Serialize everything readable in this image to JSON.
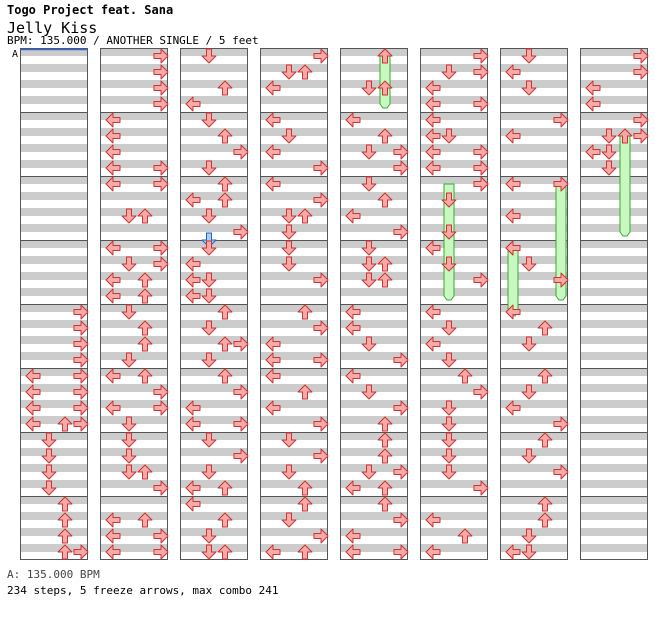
{
  "header": {
    "artist": "Togo Project feat. Sana",
    "title": "Jelly Kiss",
    "info": "BPM: 135.000 / ANOTHER SINGLE / 5 feet"
  },
  "bpm_marker": {
    "label": "A"
  },
  "footer": {
    "bpm_line": "A: 135.000 BPM",
    "stats_line": "234 steps, 5 freeze arrows, max combo 241"
  },
  "chart": {
    "columns": 8,
    "measures_per_column": 8,
    "rows_per_measure": 8,
    "lanes": [
      "left",
      "down",
      "up",
      "right"
    ],
    "colors": {
      "quarter_fill": "#f7a8a8",
      "quarter_stroke": "#cc3333",
      "eighth_fill": "#a8cff7",
      "eighth_stroke": "#2266bb",
      "freeze_fill": "#c8f7c0",
      "freeze_stroke": "#33aa33",
      "stripe": "#cccccc",
      "measure_line": "#555555",
      "bpm_line": "#3366cc"
    },
    "notes": [
      [
        0,
        4,
        0,
        3
      ],
      [
        0,
        4,
        2,
        3
      ],
      [
        0,
        4,
        4,
        3
      ],
      [
        0,
        4,
        6,
        3
      ],
      [
        0,
        5,
        0,
        3
      ],
      [
        0,
        5,
        2,
        3
      ],
      [
        0,
        5,
        4,
        3
      ],
      [
        0,
        5,
        6,
        3
      ],
      [
        0,
        5,
        0,
        0
      ],
      [
        0,
        5,
        2,
        0
      ],
      [
        0,
        5,
        4,
        0
      ],
      [
        0,
        5,
        6,
        0
      ],
      [
        0,
        5,
        6,
        2
      ],
      [
        0,
        6,
        0,
        1
      ],
      [
        0,
        6,
        2,
        1
      ],
      [
        0,
        6,
        4,
        1
      ],
      [
        0,
        6,
        6,
        1
      ],
      [
        0,
        7,
        0,
        2
      ],
      [
        0,
        7,
        2,
        2
      ],
      [
        0,
        7,
        4,
        2
      ],
      [
        0,
        7,
        6,
        2
      ],
      [
        0,
        7,
        6,
        3
      ],
      [
        1,
        0,
        0,
        3
      ],
      [
        1,
        0,
        2,
        3
      ],
      [
        1,
        0,
        4,
        3
      ],
      [
        1,
        0,
        6,
        3
      ],
      [
        1,
        1,
        0,
        0
      ],
      [
        1,
        1,
        2,
        0
      ],
      [
        1,
        1,
        4,
        0
      ],
      [
        1,
        1,
        6,
        0
      ],
      [
        1,
        1,
        6,
        3
      ],
      [
        1,
        1,
        8,
        0
      ],
      [
        1,
        1,
        8,
        3
      ],
      [
        1,
        2,
        4,
        1
      ],
      [
        1,
        2,
        4,
        2
      ],
      [
        1,
        3,
        0,
        0
      ],
      [
        1,
        3,
        0,
        3
      ],
      [
        1,
        3,
        2,
        1
      ],
      [
        1,
        3,
        2,
        3
      ],
      [
        1,
        3,
        4,
        0
      ],
      [
        1,
        3,
        4,
        2
      ],
      [
        1,
        3,
        6,
        0
      ],
      [
        1,
        3,
        6,
        2
      ],
      [
        1,
        4,
        0,
        1
      ],
      [
        1,
        4,
        2,
        2
      ],
      [
        1,
        4,
        4,
        2
      ],
      [
        1,
        4,
        6,
        1
      ],
      [
        1,
        5,
        0,
        0
      ],
      [
        1,
        5,
        0,
        2
      ],
      [
        1,
        5,
        2,
        3
      ],
      [
        1,
        5,
        4,
        0
      ],
      [
        1,
        5,
        4,
        3
      ],
      [
        1,
        5,
        6,
        1
      ],
      [
        1,
        6,
        0,
        1
      ],
      [
        1,
        6,
        2,
        1
      ],
      [
        1,
        6,
        4,
        1
      ],
      [
        1,
        6,
        4,
        2
      ],
      [
        1,
        6,
        6,
        3
      ],
      [
        1,
        7,
        2,
        0
      ],
      [
        1,
        7,
        2,
        2
      ],
      [
        1,
        7,
        4,
        0
      ],
      [
        1,
        7,
        4,
        3
      ],
      [
        1,
        7,
        6,
        0
      ],
      [
        1,
        7,
        6,
        3
      ],
      [
        2,
        0,
        0,
        1
      ],
      [
        2,
        0,
        4,
        2
      ],
      [
        2,
        0,
        6,
        0
      ],
      [
        2,
        1,
        0,
        1
      ],
      [
        2,
        1,
        2,
        2
      ],
      [
        2,
        1,
        4,
        3
      ],
      [
        2,
        1,
        6,
        1
      ],
      [
        2,
        2,
        0,
        2
      ],
      [
        2,
        2,
        2,
        0
      ],
      [
        2,
        2,
        2,
        2
      ],
      [
        2,
        2,
        4,
        1
      ],
      [
        2,
        2,
        6,
        3
      ],
      [
        2,
        2,
        7,
        1
      ],
      [
        2,
        3,
        0,
        1
      ],
      [
        2,
        3,
        2,
        0
      ],
      [
        2,
        3,
        4,
        0
      ],
      [
        2,
        3,
        4,
        1
      ],
      [
        2,
        3,
        6,
        0
      ],
      [
        2,
        3,
        6,
        1
      ],
      [
        2,
        4,
        0,
        2
      ],
      [
        2,
        4,
        2,
        1
      ],
      [
        2,
        4,
        4,
        2
      ],
      [
        2,
        4,
        4,
        3
      ],
      [
        2,
        4,
        6,
        1
      ],
      [
        2,
        5,
        0,
        2
      ],
      [
        2,
        5,
        2,
        3
      ],
      [
        2,
        5,
        4,
        0
      ],
      [
        2,
        5,
        6,
        0
      ],
      [
        2,
        5,
        6,
        3
      ],
      [
        2,
        6,
        0,
        1
      ],
      [
        2,
        6,
        2,
        3
      ],
      [
        2,
        6,
        4,
        1
      ],
      [
        2,
        6,
        6,
        2
      ],
      [
        2,
        6,
        6,
        0
      ],
      [
        2,
        7,
        0,
        0
      ],
      [
        2,
        7,
        2,
        2
      ],
      [
        2,
        7,
        4,
        1
      ],
      [
        2,
        7,
        6,
        1
      ],
      [
        2,
        7,
        6,
        2
      ],
      [
        3,
        0,
        0,
        3
      ],
      [
        3,
        0,
        2,
        1
      ],
      [
        3,
        0,
        2,
        2
      ],
      [
        3,
        0,
        4,
        0
      ],
      [
        3,
        1,
        0,
        0
      ],
      [
        3,
        1,
        2,
        1
      ],
      [
        3,
        1,
        4,
        0
      ],
      [
        3,
        1,
        6,
        3
      ],
      [
        3,
        2,
        0,
        0
      ],
      [
        3,
        2,
        2,
        3
      ],
      [
        3,
        2,
        4,
        1
      ],
      [
        3,
        2,
        4,
        2
      ],
      [
        3,
        2,
        6,
        1
      ],
      [
        3,
        3,
        0,
        1
      ],
      [
        3,
        3,
        2,
        1
      ],
      [
        3,
        3,
        4,
        3
      ],
      [
        3,
        4,
        0,
        2
      ],
      [
        3,
        4,
        2,
        3
      ],
      [
        3,
        4,
        4,
        0
      ],
      [
        3,
        4,
        6,
        0
      ],
      [
        3,
        4,
        6,
        3
      ],
      [
        3,
        5,
        0,
        0
      ],
      [
        3,
        5,
        2,
        2
      ],
      [
        3,
        5,
        4,
        0
      ],
      [
        3,
        5,
        6,
        3
      ],
      [
        3,
        6,
        0,
        1
      ],
      [
        3,
        6,
        2,
        3
      ],
      [
        3,
        6,
        4,
        1
      ],
      [
        3,
        6,
        6,
        2
      ],
      [
        3,
        7,
        0,
        2
      ],
      [
        3,
        7,
        2,
        1
      ],
      [
        3,
        7,
        4,
        3
      ],
      [
        3,
        7,
        6,
        0
      ],
      [
        3,
        7,
        6,
        2
      ],
      [
        4,
        0,
        0,
        2
      ],
      [
        4,
        0,
        4,
        1
      ],
      [
        4,
        0,
        4,
        2
      ],
      [
        4,
        1,
        0,
        0
      ],
      [
        4,
        1,
        2,
        2
      ],
      [
        4,
        1,
        4,
        1
      ],
      [
        4,
        1,
        4,
        3
      ],
      [
        4,
        1,
        6,
        3
      ],
      [
        4,
        2,
        0,
        1
      ],
      [
        4,
        2,
        2,
        2
      ],
      [
        4,
        2,
        4,
        0
      ],
      [
        4,
        2,
        6,
        3
      ],
      [
        4,
        3,
        0,
        1
      ],
      [
        4,
        3,
        2,
        1
      ],
      [
        4,
        3,
        2,
        2
      ],
      [
        4,
        3,
        4,
        1
      ],
      [
        4,
        3,
        4,
        2
      ],
      [
        4,
        4,
        0,
        0
      ],
      [
        4,
        4,
        2,
        0
      ],
      [
        4,
        4,
        4,
        1
      ],
      [
        4,
        4,
        6,
        3
      ],
      [
        4,
        5,
        0,
        0
      ],
      [
        4,
        5,
        2,
        1
      ],
      [
        4,
        5,
        4,
        3
      ],
      [
        4,
        5,
        6,
        2
      ],
      [
        4,
        6,
        0,
        2
      ],
      [
        4,
        6,
        2,
        2
      ],
      [
        4,
        6,
        4,
        1
      ],
      [
        4,
        6,
        4,
        3
      ],
      [
        4,
        6,
        6,
        0
      ],
      [
        4,
        6,
        6,
        2
      ],
      [
        4,
        7,
        0,
        2
      ],
      [
        4,
        7,
        2,
        3
      ],
      [
        4,
        7,
        4,
        0
      ],
      [
        4,
        7,
        6,
        0
      ],
      [
        4,
        7,
        6,
        3
      ],
      [
        5,
        0,
        0,
        3
      ],
      [
        5,
        0,
        2,
        1
      ],
      [
        5,
        0,
        2,
        3
      ],
      [
        5,
        0,
        4,
        0
      ],
      [
        5,
        0,
        6,
        0
      ],
      [
        5,
        0,
        6,
        3
      ],
      [
        5,
        1,
        0,
        0
      ],
      [
        5,
        1,
        2,
        0
      ],
      [
        5,
        1,
        2,
        1
      ],
      [
        5,
        1,
        4,
        0
      ],
      [
        5,
        1,
        4,
        3
      ],
      [
        5,
        1,
        6,
        0
      ],
      [
        5,
        1,
        6,
        3
      ],
      [
        5,
        2,
        0,
        3
      ],
      [
        5,
        2,
        2,
        1
      ],
      [
        5,
        2,
        6,
        1
      ],
      [
        5,
        3,
        0,
        0
      ],
      [
        5,
        3,
        2,
        1
      ],
      [
        5,
        3,
        4,
        3
      ],
      [
        5,
        4,
        0,
        0
      ],
      [
        5,
        4,
        2,
        1
      ],
      [
        5,
        4,
        4,
        0
      ],
      [
        5,
        4,
        6,
        1
      ],
      [
        5,
        5,
        0,
        2
      ],
      [
        5,
        5,
        2,
        3
      ],
      [
        5,
        5,
        4,
        1
      ],
      [
        5,
        5,
        6,
        1
      ],
      [
        5,
        6,
        0,
        1
      ],
      [
        5,
        6,
        2,
        1
      ],
      [
        5,
        6,
        4,
        1
      ],
      [
        5,
        6,
        6,
        3
      ],
      [
        5,
        7,
        2,
        0
      ],
      [
        5,
        7,
        4,
        2
      ],
      [
        5,
        7,
        6,
        0
      ],
      [
        6,
        0,
        0,
        1
      ],
      [
        6,
        0,
        2,
        0
      ],
      [
        6,
        0,
        4,
        1
      ],
      [
        6,
        1,
        0,
        3
      ],
      [
        6,
        1,
        2,
        0
      ],
      [
        6,
        2,
        0,
        0
      ],
      [
        6,
        2,
        4,
        0
      ],
      [
        6,
        3,
        0,
        0
      ],
      [
        6,
        3,
        2,
        1
      ],
      [
        6,
        3,
        4,
        3
      ],
      [
        6,
        4,
        0,
        0
      ],
      [
        6,
        4,
        2,
        2
      ],
      [
        6,
        4,
        4,
        1
      ],
      [
        6,
        5,
        0,
        2
      ],
      [
        6,
        5,
        2,
        1
      ],
      [
        6,
        5,
        4,
        0
      ],
      [
        6,
        5,
        6,
        3
      ],
      [
        6,
        6,
        0,
        2
      ],
      [
        6,
        6,
        2,
        1
      ],
      [
        6,
        6,
        4,
        3
      ],
      [
        6,
        7,
        0,
        2
      ],
      [
        6,
        7,
        2,
        2
      ],
      [
        6,
        7,
        4,
        1
      ],
      [
        6,
        7,
        6,
        0
      ],
      [
        6,
        7,
        6,
        1
      ],
      [
        7,
        0,
        0,
        3
      ],
      [
        7,
        0,
        2,
        3
      ],
      [
        7,
        0,
        4,
        0
      ],
      [
        7,
        0,
        6,
        0
      ],
      [
        7,
        1,
        0,
        3
      ],
      [
        7,
        1,
        2,
        1
      ],
      [
        7,
        1,
        2,
        3
      ],
      [
        7,
        1,
        4,
        0
      ],
      [
        7,
        1,
        4,
        1
      ],
      [
        7,
        1,
        6,
        1
      ]
    ],
    "freezes": [
      [
        4,
        0,
        0,
        0,
        6,
        2
      ],
      [
        5,
        2,
        0,
        3,
        6,
        1
      ],
      [
        6,
        3,
        0,
        4,
        0,
        0
      ],
      [
        6,
        2,
        0,
        3,
        6,
        3
      ],
      [
        7,
        1,
        2,
        2,
        6,
        2
      ]
    ],
    "freeze_heads": [
      [
        4,
        0,
        0,
        2
      ],
      [
        5,
        2,
        0,
        3
      ],
      [
        6,
        3,
        0,
        0
      ],
      [
        6,
        2,
        0,
        3
      ],
      [
        7,
        1,
        2,
        2
      ]
    ]
  }
}
